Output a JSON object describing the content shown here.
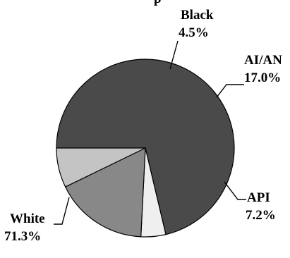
{
  "chart_data": {
    "type": "pie",
    "title_fragment": "p",
    "start_angle_deg": 180,
    "direction": "clockwise",
    "slices": [
      {
        "label": "White",
        "value": 71.3,
        "value_text": "71.3%",
        "color": "#4a4a4a"
      },
      {
        "label": "Black",
        "value": 4.5,
        "value_text": "4.5%",
        "color": "#efefef"
      },
      {
        "label": "AI/AN",
        "value": 17.0,
        "value_text": "17.0%",
        "color": "#888888"
      },
      {
        "label": "API",
        "value": 7.2,
        "value_text": "7.2%",
        "color": "#c4c4c4"
      }
    ]
  }
}
